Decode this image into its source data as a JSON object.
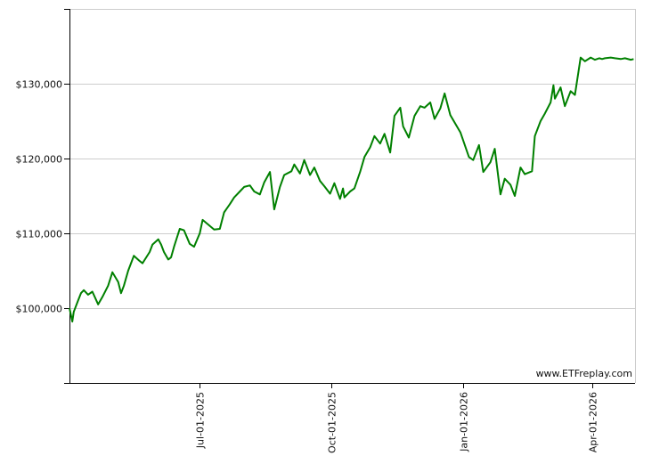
{
  "chart_data": {
    "type": "line",
    "title": "",
    "xlabel": "",
    "ylabel": "",
    "x_range": [
      "2025-04-01",
      "2026-05-01"
    ],
    "y_range": [
      90000,
      140000
    ],
    "grid": true,
    "line_color": "#008000",
    "y_ticks": [
      {
        "value": 100000,
        "label": "$100,000"
      },
      {
        "value": 110000,
        "label": "$110,000"
      },
      {
        "value": 120000,
        "label": "$120,000"
      },
      {
        "value": 130000,
        "label": "$130,000"
      }
    ],
    "x_ticks": [
      {
        "date": "2025-07-01",
        "label": "Jul-01-2025"
      },
      {
        "date": "2025-10-01",
        "label": "Oct-01-2025"
      },
      {
        "date": "2026-01-01",
        "label": "Jan-01-2026"
      },
      {
        "date": "2026-04-01",
        "label": "Apr-01-2026"
      }
    ],
    "series": [
      {
        "x": [
          "2025-04-01",
          "2025-04-03",
          "2025-04-04",
          "2025-04-07",
          "2025-04-09",
          "2025-04-11",
          "2025-04-14",
          "2025-04-17",
          "2025-04-21",
          "2025-04-24",
          "2025-04-28",
          "2025-05-01",
          "2025-05-05",
          "2025-05-07",
          "2025-05-09",
          "2025-05-12",
          "2025-05-14",
          "2025-05-16",
          "2025-05-20",
          "2025-05-22",
          "2025-05-27",
          "2025-05-29",
          "2025-06-02",
          "2025-06-04",
          "2025-06-06",
          "2025-06-09",
          "2025-06-11",
          "2025-06-13",
          "2025-06-17",
          "2025-06-20",
          "2025-06-24",
          "2025-06-27",
          "2025-07-01",
          "2025-07-03",
          "2025-07-08",
          "2025-07-11",
          "2025-07-15",
          "2025-07-18",
          "2025-07-22",
          "2025-07-25",
          "2025-07-29",
          "2025-08-01",
          "2025-08-05",
          "2025-08-08",
          "2025-08-12",
          "2025-08-15",
          "2025-08-19",
          "2025-08-22",
          "2025-08-26",
          "2025-08-29",
          "2025-09-03",
          "2025-09-05",
          "2025-09-09",
          "2025-09-12",
          "2025-09-16",
          "2025-09-19",
          "2025-09-23",
          "2025-09-26",
          "2025-09-30",
          "2025-10-03",
          "2025-10-07",
          "2025-10-09",
          "2025-10-10",
          "2025-10-14",
          "2025-10-17",
          "2025-10-21",
          "2025-10-24",
          "2025-10-28",
          "2025-10-31",
          "2025-11-04",
          "2025-11-07",
          "2025-11-11",
          "2025-11-14",
          "2025-11-18",
          "2025-11-20",
          "2025-11-24",
          "2025-11-28",
          "2025-12-02",
          "2025-12-05",
          "2025-12-09",
          "2025-12-12",
          "2025-12-16",
          "2025-12-19",
          "2025-12-23",
          "2025-12-30",
          "2026-01-05",
          "2026-01-08",
          "2026-01-12",
          "2026-01-15",
          "2026-01-20",
          "2026-01-23",
          "2026-01-27",
          "2026-01-30",
          "2026-02-03",
          "2026-02-06",
          "2026-02-10",
          "2026-02-13",
          "2026-02-18",
          "2026-02-20",
          "2026-02-24",
          "2026-02-27",
          "2026-03-03",
          "2026-03-05",
          "2026-03-06",
          "2026-03-10",
          "2026-03-13",
          "2026-03-17",
          "2026-03-20",
          "2026-03-24",
          "2026-03-27",
          "2026-03-31",
          "2026-04-03",
          "2026-04-06",
          "2026-04-08",
          "2026-04-10",
          "2026-04-14",
          "2026-04-17",
          "2026-04-21",
          "2026-04-24",
          "2026-04-28",
          "2026-04-30"
        ],
        "y": [
          100000,
          98200,
          99500,
          101000,
          102000,
          102400,
          101800,
          102200,
          100500,
          101500,
          103000,
          104800,
          103500,
          102000,
          103000,
          105000,
          106000,
          107000,
          106300,
          106000,
          107500,
          108500,
          109200,
          108500,
          107500,
          106500,
          106800,
          108200,
          110600,
          110400,
          108600,
          108200,
          110000,
          111800,
          111000,
          110500,
          110600,
          112800,
          113900,
          114800,
          115600,
          116200,
          116400,
          115600,
          115200,
          116800,
          118200,
          113200,
          116200,
          117800,
          118300,
          119200,
          118000,
          119800,
          117800,
          118800,
          117000,
          116300,
          115300,
          116700,
          114600,
          116000,
          114800,
          115600,
          116000,
          118200,
          120200,
          121500,
          123000,
          122000,
          123300,
          120800,
          125700,
          126800,
          124300,
          122800,
          125700,
          127000,
          126800,
          127500,
          125300,
          126700,
          128700,
          125800,
          123500,
          120200,
          119800,
          121800,
          118200,
          119500,
          121300,
          115200,
          117300,
          116500,
          115000,
          118800,
          117900,
          118300,
          123000,
          125000,
          126000,
          127500,
          129800,
          128000,
          129500,
          127000,
          129000,
          128500,
          133500,
          133000,
          133500,
          133200,
          133400,
          133300,
          133400,
          133500,
          133400,
          133300,
          133400,
          133200,
          133300
        ]
      }
    ]
  },
  "watermark": "www.ETFreplay.com"
}
